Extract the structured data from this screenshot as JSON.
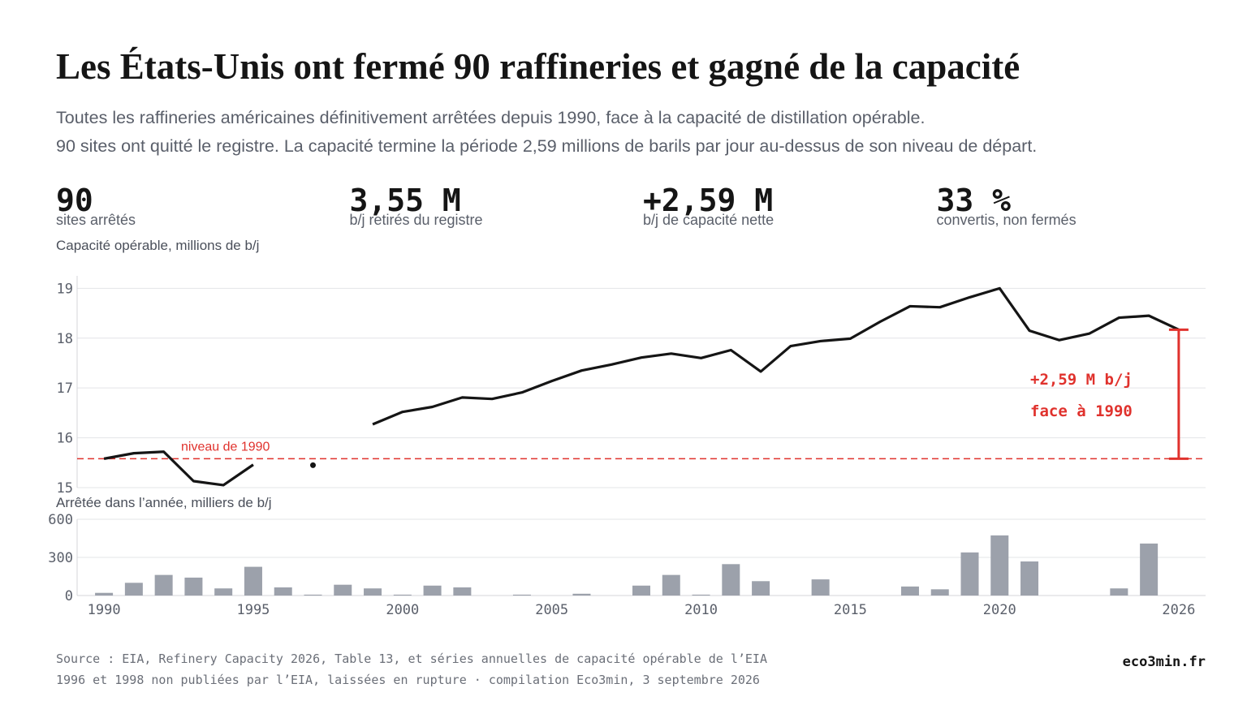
{
  "header": {
    "title": "Les États-Unis ont fermé 90 raffineries et gagné de la capacité",
    "subtitle": [
      "Toutes les raffineries américaines définitivement arrêtées depuis 1990, face à la capacité de distillation opérable.",
      "90 sites ont quitté le registre. La capacité termine la période 2,59 millions de barils par jour au-dessus de son niveau de départ."
    ]
  },
  "stats": [
    {
      "value": "90",
      "label": "sites arrêtés"
    },
    {
      "value": "3,55 M",
      "label": "b/j retirés du registre"
    },
    {
      "value": "+2,59 M",
      "label": "b/j de capacité nette"
    },
    {
      "value": "33 %",
      "label": "convertis, non fermés"
    }
  ],
  "chart_data": [
    {
      "type": "line",
      "axis_title": "Capacité opérable, millions de b/j",
      "color": "#151515",
      "x": [
        1990,
        1991,
        1992,
        1993,
        1994,
        1995,
        1996,
        1997,
        1998,
        1999,
        2000,
        2001,
        2002,
        2003,
        2004,
        2005,
        2006,
        2007,
        2008,
        2009,
        2010,
        2011,
        2012,
        2013,
        2014,
        2015,
        2016,
        2017,
        2018,
        2019,
        2020,
        2021,
        2022,
        2023,
        2024,
        2025,
        2026
      ],
      "values": [
        15.58,
        15.69,
        15.72,
        15.13,
        15.05,
        15.46,
        null,
        15.45,
        null,
        16.27,
        16.52,
        16.62,
        16.81,
        16.78,
        16.91,
        17.14,
        17.35,
        17.47,
        17.61,
        17.69,
        17.6,
        17.76,
        17.33,
        17.84,
        17.94,
        17.99,
        18.33,
        18.64,
        18.62,
        18.82,
        19.0,
        18.15,
        17.96,
        18.09,
        18.41,
        18.45,
        18.17
      ],
      "xlim": [
        1989.1,
        2026.9
      ],
      "ylim": [
        15,
        19.25
      ],
      "yticks": [
        15,
        16,
        17,
        18,
        19
      ],
      "grid": true,
      "reference_line": {
        "value": 15.58,
        "label": "niveau de 1990",
        "color": "#e0322d"
      },
      "annotation": {
        "lines": [
          "+2,59 M b/j",
          "face à 1990"
        ],
        "color": "#e0322d"
      }
    },
    {
      "type": "bar",
      "axis_title": "Arrêtée dans l’année, milliers de b/j",
      "color": "#9ca1ab",
      "x": [
        1990,
        1991,
        1992,
        1993,
        1994,
        1995,
        1996,
        1997,
        1998,
        1999,
        2000,
        2001,
        2002,
        2003,
        2004,
        2005,
        2006,
        2007,
        2008,
        2009,
        2010,
        2011,
        2012,
        2013,
        2014,
        2015,
        2016,
        2017,
        2018,
        2019,
        2020,
        2021,
        2022,
        2023,
        2024,
        2025,
        2026
      ],
      "values": [
        21,
        100,
        162,
        141,
        56,
        226,
        64,
        7,
        85,
        56,
        7,
        78,
        64,
        0,
        7,
        0,
        14,
        0,
        78,
        162,
        7,
        247,
        113,
        0,
        127,
        0,
        0,
        71,
        49,
        339,
        473,
        268,
        0,
        0,
        56,
        409,
        0
      ],
      "xlim": [
        1989.1,
        2026.9
      ],
      "ylim": [
        0,
        600
      ],
      "yticks": [
        0,
        300,
        600
      ],
      "grid": true,
      "xticks": [
        1990,
        1995,
        2000,
        2005,
        2010,
        2015,
        2020,
        2026
      ]
    }
  ],
  "footer": {
    "source": [
      "Source : EIA, Refinery Capacity 2026, Table 13, et séries annuelles de capacité opérable de l’EIA",
      "1996 et 1998 non publiées par l’EIA, laissées en rupture · compilation Eco3min, 3 septembre 2026"
    ],
    "brand": "eco3min.fr"
  }
}
